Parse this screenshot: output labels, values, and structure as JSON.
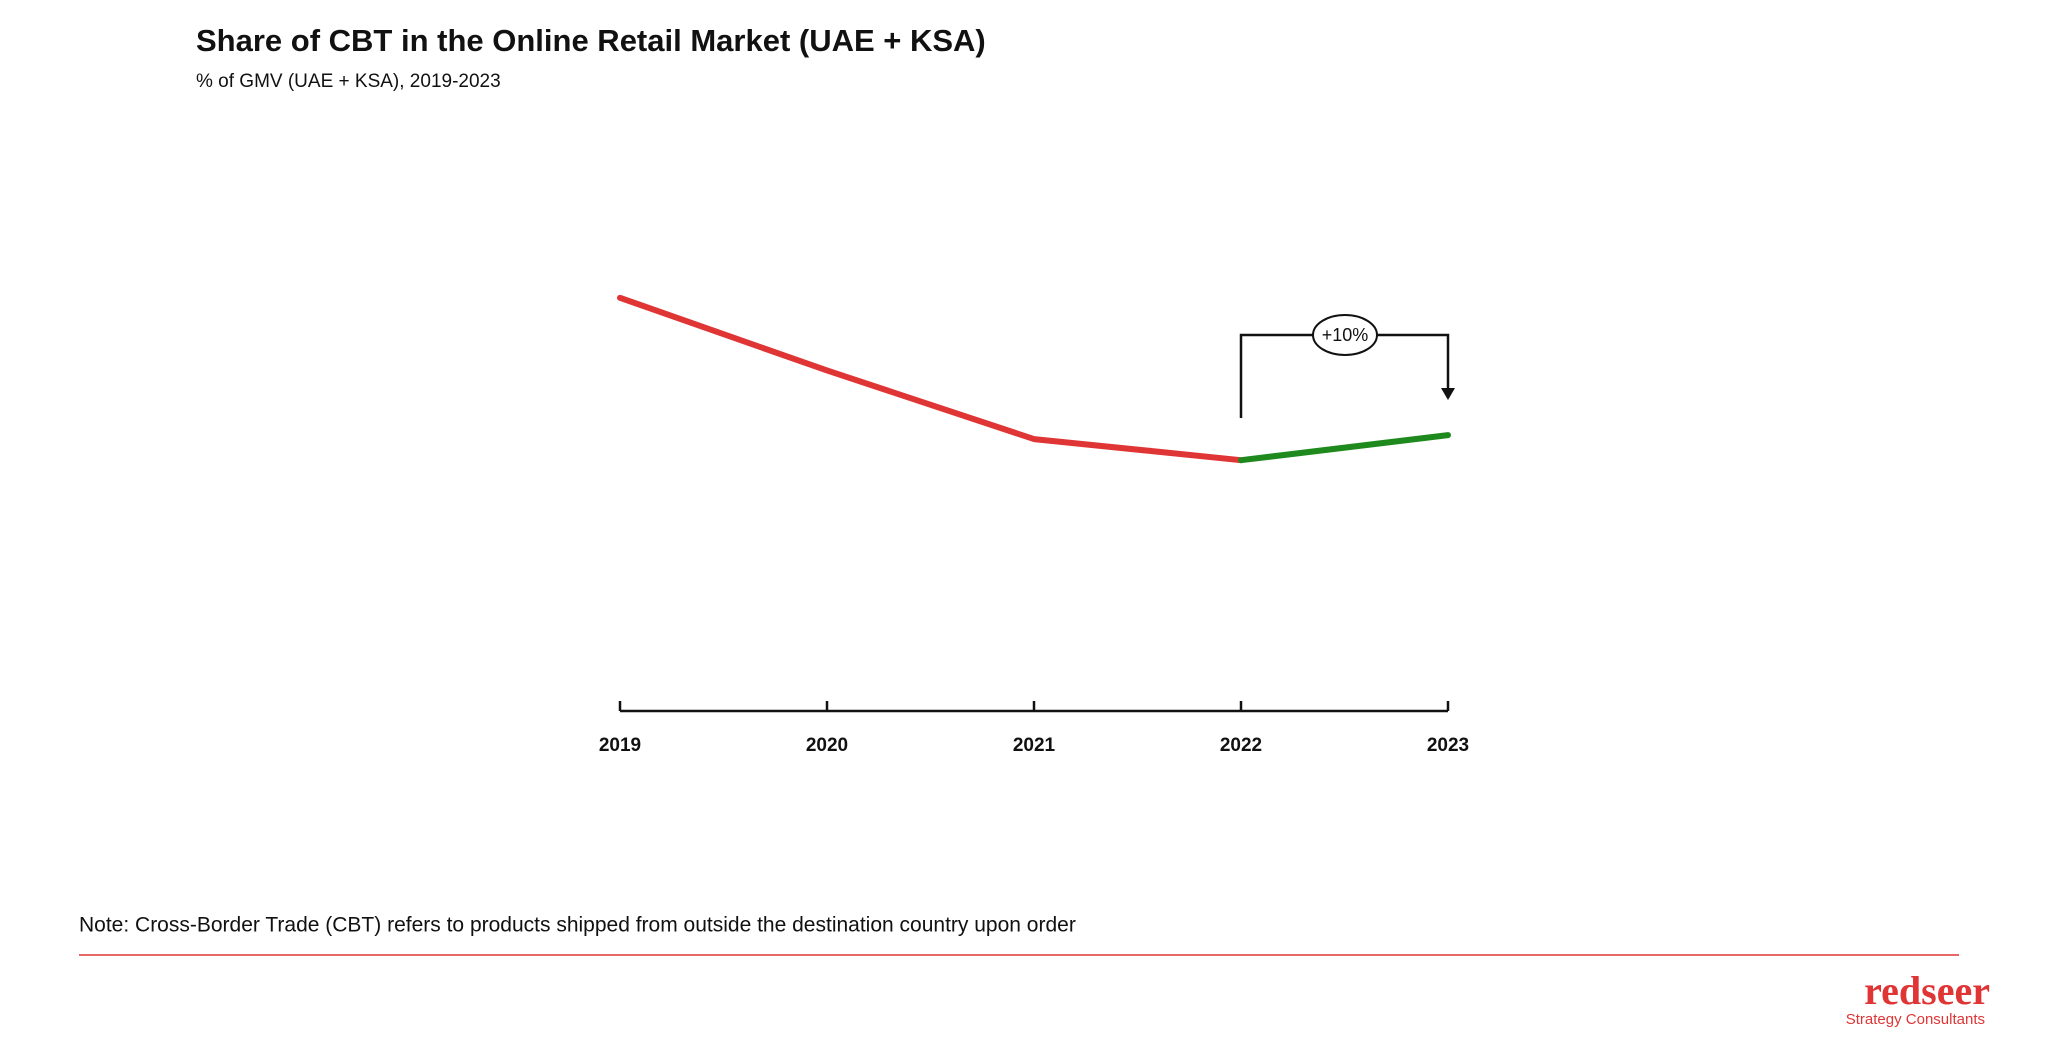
{
  "chart_data": {
    "type": "line",
    "title": "Share of CBT in the Online Retail Market (UAE + KSA)",
    "subtitle": "% of GMV (UAE + KSA), 2019-2023",
    "categories": [
      "2019",
      "2020",
      "2021",
      "2022",
      "2023"
    ],
    "series": [
      {
        "color": "#e03535",
        "values": [
          31.3,
          25.8,
          20.6,
          19.0,
          null
        ]
      },
      {
        "color": "#1e8a1e",
        "values": [
          null,
          null,
          null,
          19.0,
          20.9
        ]
      }
    ],
    "ylim": [
      0,
      40
    ],
    "annotation": "+10%"
  },
  "footer": {
    "note": "Note: Cross-Border Trade (CBT) refers to products shipped from outside the destination country upon order",
    "brand": "redseer",
    "tagline": "Strategy Consultants"
  }
}
